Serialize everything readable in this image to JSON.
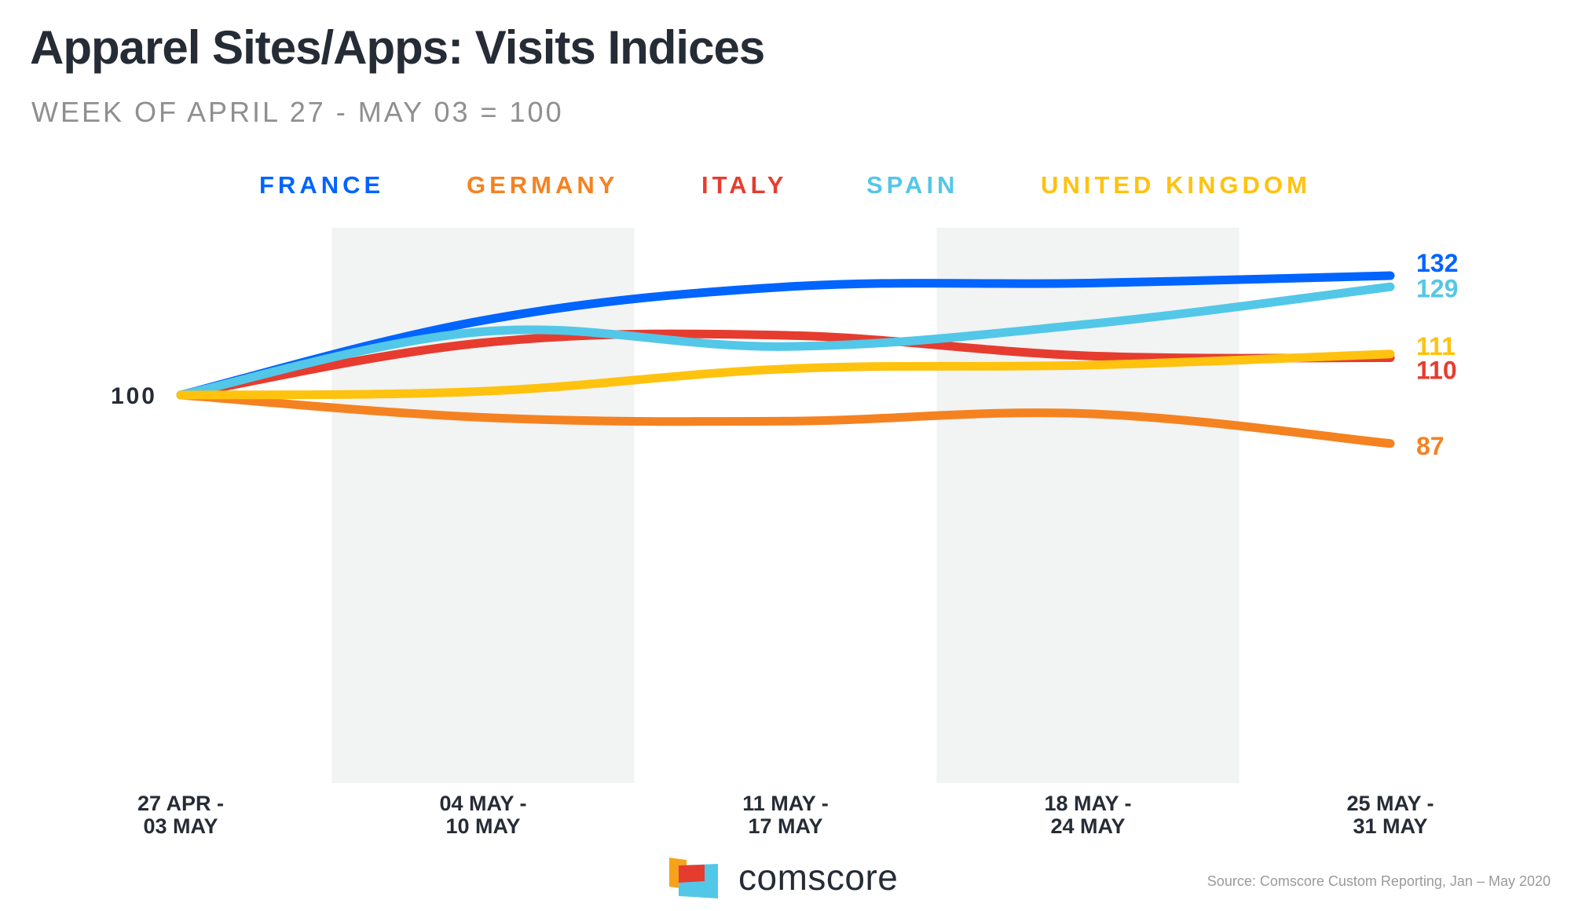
{
  "header": {
    "title": "Apparel Sites/Apps: Visits Indices",
    "subtitle": "WEEK OF APRIL 27 - MAY 03 = 100"
  },
  "footer": {
    "brand": "comscore",
    "source": "Source: Comscore Custom Reporting, Jan – May 2020"
  },
  "chart_data": {
    "type": "line",
    "title": "Apparel Sites/Apps: Visits Indices",
    "subtitle": "WEEK OF APRIL 27 - MAY 03 = 100",
    "xlabel": "",
    "ylabel": "",
    "categories": [
      [
        "27 APR -",
        "03 MAY"
      ],
      [
        "04 MAY -",
        "10 MAY"
      ],
      [
        "11 MAY -",
        "17 MAY"
      ],
      [
        "18 MAY -",
        "24 MAY"
      ],
      [
        "25 MAY -",
        "31 MAY"
      ]
    ],
    "ylim": [
      0,
      132
    ],
    "y_reference_label": "100",
    "grid": false,
    "shaded_bands": [
      1,
      3
    ],
    "legend_position": "top",
    "series": [
      {
        "name": "FRANCE",
        "color": "#0064ff",
        "values": [
          100,
          120,
          129,
          130,
          132
        ],
        "end_label": "132"
      },
      {
        "name": "GERMANY",
        "color": "#f58220",
        "values": [
          100,
          94,
          93,
          95,
          87
        ],
        "end_label": "87"
      },
      {
        "name": "ITALY",
        "color": "#e63c2f",
        "values": [
          100,
          114,
          116,
          110.5,
          110
        ],
        "end_label": "110"
      },
      {
        "name": "SPAIN",
        "color": "#53c7e8",
        "values": [
          100,
          117,
          113,
          119,
          129
        ],
        "end_label": "129"
      },
      {
        "name": "UNITED KINGDOM",
        "color": "#ffc20e",
        "values": [
          100,
          101,
          107,
          108,
          111
        ],
        "end_label": "111"
      }
    ]
  },
  "colors": {
    "text_dark": "#262c36",
    "subtitle_gray": "#8f8f8f",
    "band_gray": "#f2f3f3",
    "logo_orange": "#f7a21b",
    "logo_red": "#e63c2f",
    "logo_cyan": "#53c7e8"
  }
}
